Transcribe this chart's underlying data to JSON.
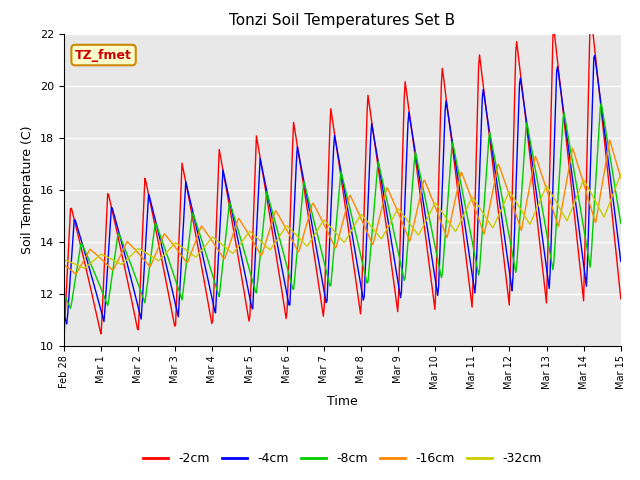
{
  "title": "Tonzi Soil Temperatures Set B",
  "xlabel": "Time",
  "ylabel": "Soil Temperature (C)",
  "annotation": "TZ_fmet",
  "ylim": [
    10,
    22
  ],
  "xlim": [
    0,
    15
  ],
  "bg_color": "#e8e8e8",
  "series_colors": {
    "-2cm": "#ff0000",
    "-4cm": "#0000ff",
    "-8cm": "#00cc00",
    "-16cm": "#ff8800",
    "-32cm": "#cccc00"
  },
  "xtick_labels": [
    "Feb 28",
    "Mar 1",
    "Mar 2",
    "Mar 3",
    "Mar 4",
    "Mar 5",
    "Mar 6",
    "Mar 7",
    "Mar 8",
    "Mar 9",
    "Mar 10",
    "Mar 11",
    "Mar 12",
    "Mar 13",
    "Mar 14",
    "Mar 15"
  ],
  "xtick_positions": [
    0,
    1,
    2,
    3,
    4,
    5,
    6,
    7,
    8,
    9,
    10,
    11,
    12,
    13,
    14,
    15
  ],
  "ytick_labels": [
    "10",
    "12",
    "14",
    "16",
    "18",
    "20",
    "22"
  ],
  "ytick_positions": [
    10,
    12,
    14,
    16,
    18,
    20,
    22
  ],
  "figsize": [
    6.4,
    4.8
  ],
  "dpi": 100
}
